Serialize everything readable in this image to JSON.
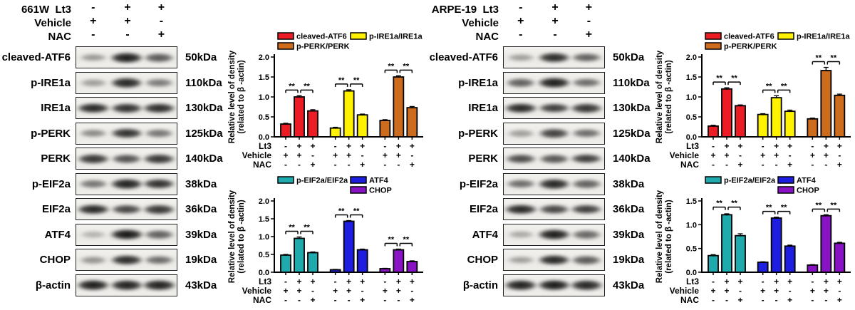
{
  "layout": {
    "lane_centers": [
      17,
      50,
      82.5
    ]
  },
  "panels": [
    {
      "id": "661w",
      "treatments": [
        {
          "label": "661W  Lt3",
          "signs": [
            "-",
            "+",
            "+"
          ]
        },
        {
          "label": "Vehicle",
          "signs": [
            "+",
            "+",
            "-"
          ]
        },
        {
          "label": "NAC",
          "signs": [
            "-",
            "-",
            "+"
          ]
        }
      ],
      "blots": [
        {
          "protein": "cleaved-ATF6",
          "kda": "50kDa",
          "bands": [
            0.38,
            0.97,
            0.68
          ]
        },
        {
          "protein": "p-IRE1a",
          "kda": "110kDa",
          "bands": [
            0.35,
            0.92,
            0.52
          ]
        },
        {
          "protein": "IRE1a",
          "kda": "130kDa",
          "bands": [
            0.92,
            0.88,
            0.9
          ]
        },
        {
          "protein": "p-PERK",
          "kda": "125kDa",
          "bands": [
            0.45,
            0.88,
            0.55
          ]
        },
        {
          "protein": "PERK",
          "kda": "140kDa",
          "bands": [
            0.85,
            0.72,
            0.85
          ]
        },
        {
          "protein": "p-EIF2a",
          "kda": "38kDa",
          "bands": [
            0.55,
            0.95,
            0.88
          ]
        },
        {
          "protein": "EIF2a",
          "kda": "36kDa",
          "bands": [
            0.92,
            0.78,
            0.85
          ]
        },
        {
          "protein": "ATF4",
          "kda": "39kDa",
          "bands": [
            0.25,
            1.0,
            0.65
          ]
        },
        {
          "protein": "CHOP",
          "kda": "19kDa",
          "bands": [
            0.4,
            0.9,
            0.6
          ]
        },
        {
          "protein": "β-actin",
          "kda": "43kDa",
          "bands": [
            0.97,
            0.95,
            0.95
          ]
        }
      ]
    },
    {
      "id": "arpe19",
      "treatments": [
        {
          "label": "ARPE-19  Lt3",
          "signs": [
            "-",
            "+",
            "+"
          ]
        },
        {
          "label": "Vehicle",
          "signs": [
            "+",
            "+",
            "-"
          ]
        },
        {
          "label": "NAC",
          "signs": [
            "-",
            "-",
            "+"
          ]
        }
      ],
      "blots": [
        {
          "protein": "cleaved-ATF6",
          "kda": "50kDa",
          "bands": [
            0.35,
            0.9,
            0.65
          ]
        },
        {
          "protein": "p-IRE1a",
          "kda": "110kDa",
          "bands": [
            0.65,
            0.97,
            0.6
          ]
        },
        {
          "protein": "IRE1a",
          "kda": "130kDa",
          "bands": [
            0.92,
            0.82,
            0.86
          ]
        },
        {
          "protein": "p-PERK",
          "kda": "125kDa",
          "bands": [
            0.35,
            0.8,
            0.6
          ]
        },
        {
          "protein": "PERK",
          "kda": "140kDa",
          "bands": [
            0.75,
            0.7,
            0.82
          ]
        },
        {
          "protein": "p-EIF2a",
          "kda": "38kDa",
          "bands": [
            0.6,
            0.92,
            0.65
          ]
        },
        {
          "protein": "EIF2a",
          "kda": "36kDa",
          "bands": [
            0.92,
            0.78,
            0.82
          ]
        },
        {
          "protein": "ATF4",
          "kda": "39kDa",
          "bands": [
            0.3,
            0.97,
            0.62
          ]
        },
        {
          "protein": "CHOP",
          "kda": "19kDa",
          "bands": [
            0.35,
            0.92,
            0.68
          ]
        },
        {
          "protein": "β-actin",
          "kda": "43kDa",
          "bands": [
            0.95,
            0.98,
            0.92
          ]
        }
      ]
    }
  ],
  "chart_data": [
    {
      "type": "bar",
      "panel": "661W",
      "position": "top",
      "ylabel_lines": [
        "Relative level of density",
        "(related to β -actin)"
      ],
      "ylim": [
        0,
        2.0
      ],
      "yticks": [
        0,
        0.5,
        1.0,
        1.5,
        2.0
      ],
      "series": [
        {
          "name": "cleaved-ATF6",
          "color": "#EC1C24",
          "values": [
            0.32,
            1.0,
            0.65
          ],
          "errors": [
            0.02,
            0.03,
            0.03
          ]
        },
        {
          "name": "p-IRE1a/IRE1a",
          "color": "#FFF200",
          "values": [
            0.22,
            1.15,
            0.55
          ],
          "errors": [
            0.02,
            0.03,
            0.02
          ]
        },
        {
          "name": "p-PERK/PERK",
          "color": "#CE6C1D",
          "values": [
            0.41,
            1.5,
            0.73
          ],
          "errors": [
            0.02,
            0.03,
            0.03
          ]
        }
      ],
      "legend_grid": [
        [
          "cleaved-ATF6",
          "p-IRE1a/IRE1a"
        ],
        [
          "p-PERK/PERK",
          ""
        ]
      ],
      "significance": {
        "label": "**",
        "pairs": [
          [
            0,
            1
          ],
          [
            1,
            2
          ]
        ]
      },
      "x_rows": [
        {
          "label": "Lt3",
          "signs": [
            "-",
            "+",
            "+"
          ]
        },
        {
          "label": "Vehicle",
          "signs": [
            "+",
            "+",
            "-"
          ]
        },
        {
          "label": "NAC",
          "signs": [
            "-",
            "-",
            "+"
          ]
        }
      ]
    },
    {
      "type": "bar",
      "panel": "661W",
      "position": "bottom",
      "ylabel_lines": [
        "Relative level of density",
        "(related to β -actin)"
      ],
      "ylim": [
        0,
        2.0
      ],
      "yticks": [
        0,
        0.5,
        1.0,
        1.5,
        2.0
      ],
      "series": [
        {
          "name": "p-EIF2a/EIF2a",
          "color": "#1FAAAD",
          "values": [
            0.48,
            0.95,
            0.55
          ],
          "errors": [
            0.02,
            0.04,
            0.02
          ]
        },
        {
          "name": "ATF4",
          "color": "#1E1EE0",
          "values": [
            0.07,
            1.43,
            0.63
          ],
          "errors": [
            0.01,
            0.02,
            0.02
          ]
        },
        {
          "name": "CHOP",
          "color": "#8912C4",
          "values": [
            0.1,
            0.63,
            0.3
          ],
          "errors": [
            0.01,
            0.02,
            0.02
          ]
        }
      ],
      "legend_grid": [
        [
          "p-EIF2a/EIF2a",
          "ATF4"
        ],
        [
          "",
          "CHOP"
        ]
      ],
      "significance": {
        "label": "**",
        "pairs": [
          [
            0,
            1
          ],
          [
            1,
            2
          ]
        ]
      },
      "x_rows": [
        {
          "label": "Lt3",
          "signs": [
            "-",
            "+",
            "+"
          ]
        },
        {
          "label": "Vehicle",
          "signs": [
            "+",
            "+",
            "-"
          ]
        },
        {
          "label": "NAC",
          "signs": [
            "-",
            "-",
            "+"
          ]
        }
      ]
    },
    {
      "type": "bar",
      "panel": "ARPE-19",
      "position": "top",
      "ylabel_lines": [
        "Relative level of density",
        "(related to β -actin)"
      ],
      "ylim": [
        0,
        2.0
      ],
      "yticks": [
        0,
        0.5,
        1.0,
        1.5,
        2.0
      ],
      "series": [
        {
          "name": "cleaved-ATF6",
          "color": "#EC1C24",
          "values": [
            0.27,
            1.2,
            0.78
          ],
          "errors": [
            0.02,
            0.03,
            0.02
          ]
        },
        {
          "name": "p-IRE1a/IRE1a",
          "color": "#FFF200",
          "values": [
            0.56,
            0.98,
            0.64
          ],
          "errors": [
            0.02,
            0.05,
            0.03
          ]
        },
        {
          "name": "p-PERK/PERK",
          "color": "#CE6C1D",
          "values": [
            0.45,
            1.66,
            1.04
          ],
          "errors": [
            0.02,
            0.08,
            0.03
          ]
        }
      ],
      "legend_grid": [
        [
          "cleaved-ATF6",
          "p-IRE1a/IRE1a"
        ],
        [
          "p-PERK/PERK",
          ""
        ]
      ],
      "significance": {
        "label": "**",
        "pairs": [
          [
            0,
            1
          ],
          [
            1,
            2
          ]
        ]
      },
      "x_rows": [
        {
          "label": "Lt3",
          "signs": [
            "-",
            "+",
            "+"
          ]
        },
        {
          "label": "Vehicle",
          "signs": [
            "+",
            "+",
            "-"
          ]
        },
        {
          "label": "NAC",
          "signs": [
            "-",
            "-",
            "+"
          ]
        }
      ]
    },
    {
      "type": "bar",
      "panel": "ARPE-19",
      "position": "bottom",
      "ylabel_lines": [
        "Relative level of density",
        "(related to β -actin)"
      ],
      "ylim": [
        0,
        1.5
      ],
      "yticks": [
        0,
        0.5,
        1.0,
        1.5
      ],
      "series": [
        {
          "name": "p-EIF2a/EIF2a",
          "color": "#1FAAAD",
          "values": [
            0.35,
            1.21,
            0.77
          ],
          "errors": [
            0.02,
            0.02,
            0.04
          ]
        },
        {
          "name": "ATF4",
          "color": "#1E1EE0",
          "values": [
            0.21,
            1.14,
            0.55
          ],
          "errors": [
            0.01,
            0.02,
            0.02
          ]
        },
        {
          "name": "CHOP",
          "color": "#8912C4",
          "values": [
            0.15,
            1.19,
            0.61
          ],
          "errors": [
            0.01,
            0.02,
            0.02
          ]
        }
      ],
      "legend_grid": [
        [
          "p-EIF2a/EIF2a",
          "ATF4"
        ],
        [
          "",
          "CHOP"
        ]
      ],
      "significance": {
        "label": "**",
        "pairs": [
          [
            0,
            1
          ],
          [
            1,
            2
          ]
        ]
      },
      "x_rows": [
        {
          "label": "Lt3",
          "signs": [
            "-",
            "+",
            "+"
          ]
        },
        {
          "label": "Vehicle",
          "signs": [
            "+",
            "+",
            "-"
          ]
        },
        {
          "label": "NAC",
          "signs": [
            "-",
            "-",
            "+"
          ]
        }
      ]
    }
  ]
}
